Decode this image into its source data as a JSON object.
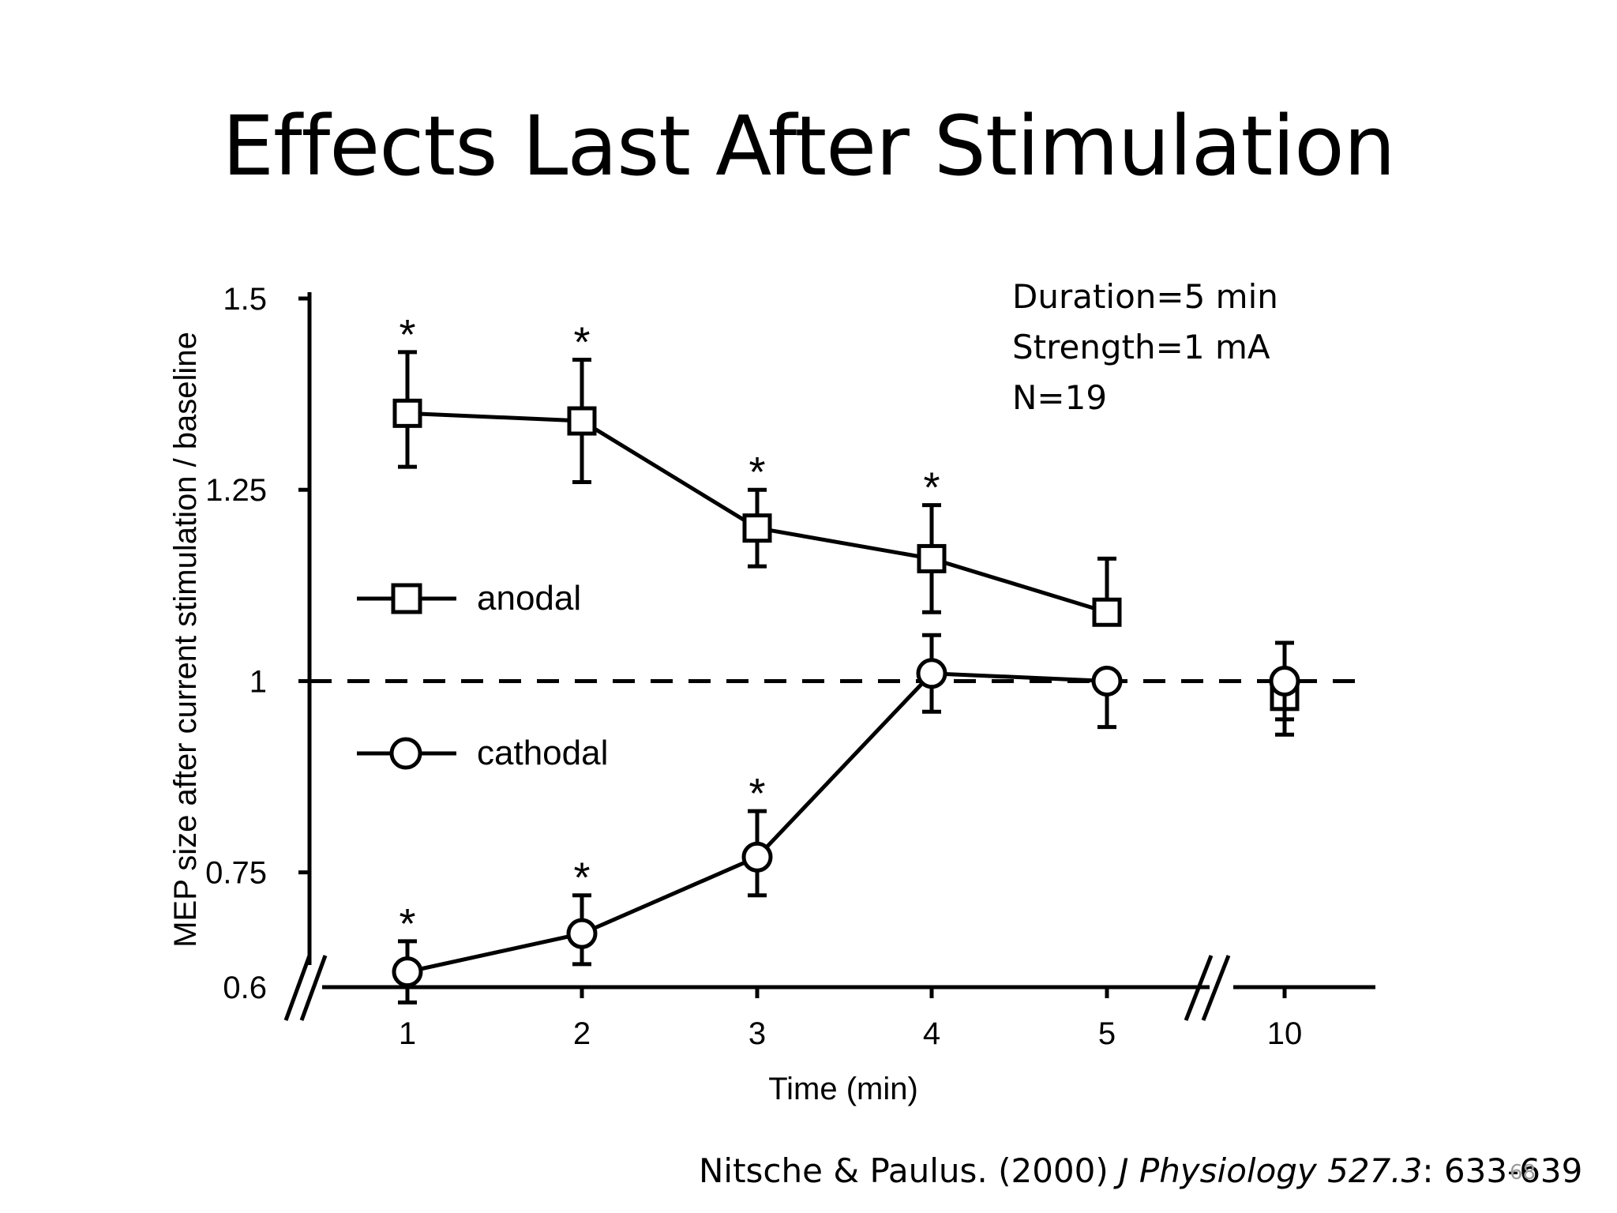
{
  "slide": {
    "title": "Effects Last After Stimulation",
    "info_lines": [
      "Duration=5 min",
      "Strength=1 mA",
      "N=19"
    ],
    "citation": {
      "authors_year": "Nitsche & Paulus. (2000) ",
      "journal": "J Physiology 527.3",
      "pages": ": 633-639"
    },
    "slide_number": "68"
  },
  "chart_data": {
    "type": "line",
    "xlabel": "Time (min)",
    "ylabel": "MEP size after current stimulation / baseline",
    "categories": [
      "1",
      "2",
      "3",
      "4",
      "5",
      "10"
    ],
    "x": [
      1,
      2,
      3,
      4,
      5,
      10
    ],
    "y_ticks": [
      1.5,
      1.25,
      1,
      0.75,
      0.6
    ],
    "y_tick_labels": [
      "1.5",
      "1.25",
      "1",
      "0.75",
      "0.6"
    ],
    "ylim": [
      0.6,
      1.5
    ],
    "axis_breaks": [
      "y-axis at 0.6",
      "x-axis between 5 and 10"
    ],
    "reference_line": {
      "y": 1,
      "style": "dashed"
    },
    "legend": {
      "placement": "center-left"
    },
    "series": [
      {
        "name": "anodal",
        "marker": "square",
        "values": [
          1.35,
          1.34,
          1.2,
          1.16,
          1.09,
          0.98
        ],
        "error_low": [
          1.28,
          1.26,
          1.15,
          1.09,
          1.09,
          0.93
        ],
        "error_high": [
          1.43,
          1.42,
          1.25,
          1.23,
          1.16,
          1.05
        ],
        "significant": [
          true,
          true,
          true,
          true,
          false,
          false
        ]
      },
      {
        "name": "cathodal",
        "marker": "circle",
        "values": [
          0.62,
          0.67,
          0.77,
          1.01,
          1.0,
          1.0
        ],
        "error_low": [
          0.58,
          0.63,
          0.72,
          0.96,
          0.94,
          0.95
        ],
        "error_high": [
          0.66,
          0.72,
          0.83,
          1.06,
          1.0,
          1.0
        ],
        "significant": [
          true,
          true,
          true,
          false,
          false,
          false
        ]
      }
    ],
    "significance_marker": "*"
  }
}
